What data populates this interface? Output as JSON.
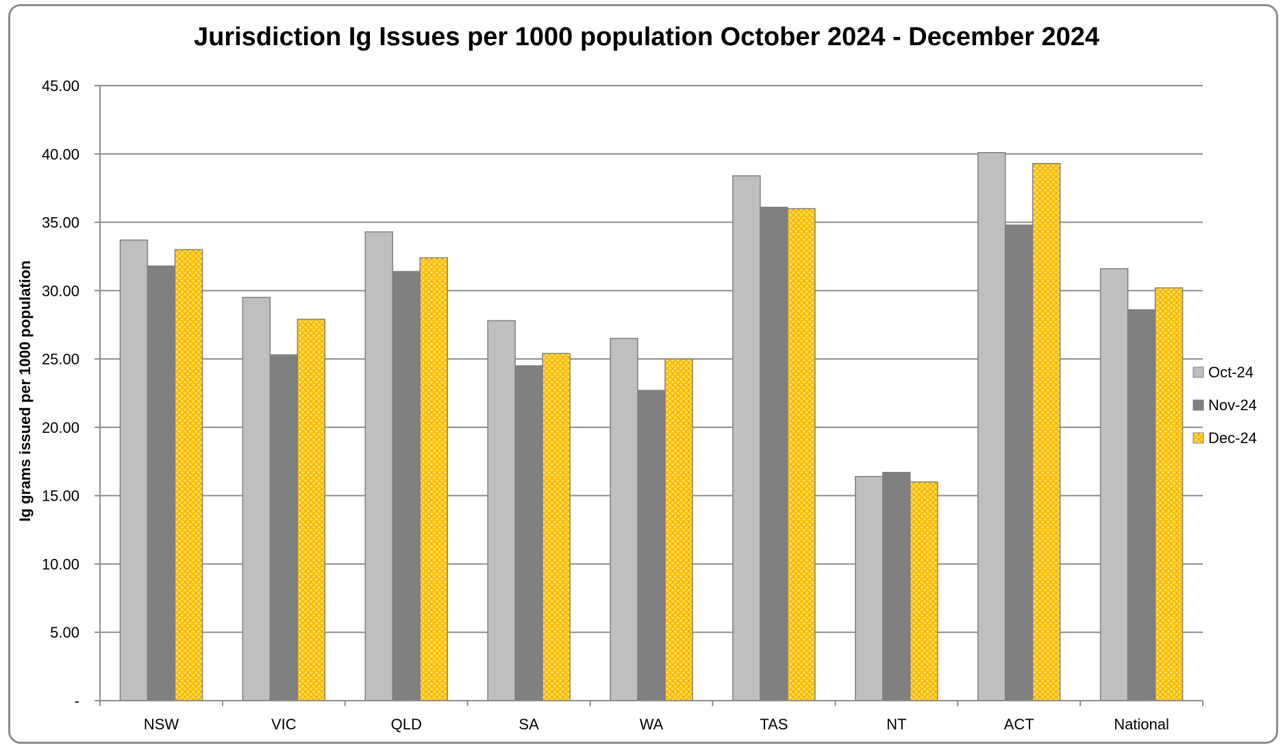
{
  "chart_data": {
    "type": "bar",
    "title": "Jurisdiction Ig Issues per 1000 population October 2024 - December 2024",
    "xlabel": "",
    "ylabel": "Ig grams issued per 1000 population",
    "ylim": [
      0,
      45
    ],
    "y_ticks": [
      "-",
      "5.00",
      "10.00",
      "15.00",
      "20.00",
      "25.00",
      "30.00",
      "35.00",
      "40.00",
      "45.00"
    ],
    "grid": true,
    "legend_position": "right",
    "categories": [
      "NSW",
      "VIC",
      "QLD",
      "SA",
      "WA",
      "TAS",
      "NT",
      "ACT",
      "National"
    ],
    "series": [
      {
        "name": "Oct-24",
        "color": "#bfbfbf",
        "pattern": "solid",
        "values": [
          33.7,
          29.5,
          34.3,
          27.8,
          26.5,
          38.4,
          16.4,
          40.1,
          31.6
        ]
      },
      {
        "name": "Nov-24",
        "color": "#808080",
        "pattern": "solid",
        "values": [
          31.8,
          25.3,
          31.4,
          24.5,
          22.7,
          36.1,
          16.7,
          34.8,
          28.6
        ]
      },
      {
        "name": "Dec-24",
        "color": "#ffc000",
        "pattern": "dotted",
        "values": [
          33.0,
          27.9,
          32.4,
          25.4,
          25.0,
          36.0,
          16.0,
          39.3,
          30.2
        ]
      }
    ]
  }
}
